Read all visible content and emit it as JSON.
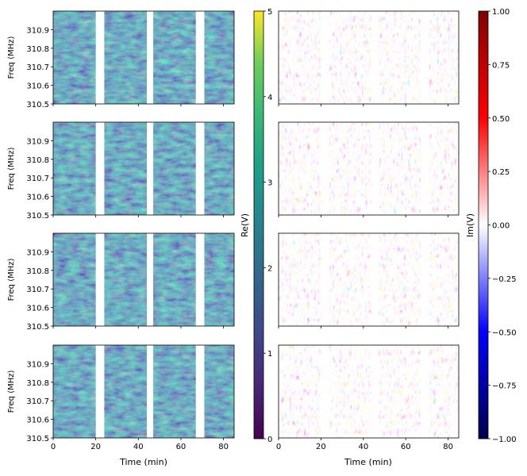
{
  "chart_data": {
    "type": "heatmap",
    "layout": "4 rows x 2 columns of dynamic-spectrum panels sharing time axis",
    "x": {
      "label": "Time (min)",
      "ticks": [
        0,
        20,
        40,
        60,
        80
      ],
      "range": [
        0,
        85
      ]
    },
    "y": {
      "label": "Freq (MHz)",
      "ticks": [
        "310.5",
        "310.6",
        "310.7",
        "310.8",
        "310.9"
      ],
      "range": [
        310.5,
        311.0
      ]
    },
    "data_gaps_min": [
      [
        20,
        24
      ],
      [
        44,
        47
      ],
      [
        67,
        71
      ]
    ],
    "left_colorbar": {
      "label": "Re(V)",
      "colormap": "viridis",
      "range": [
        0,
        5
      ],
      "ticks": [
        "0",
        "1",
        "2",
        "3",
        "4",
        "5"
      ]
    },
    "right_colorbar": {
      "label": "Im(V)",
      "colormap": "seismic",
      "range": [
        -1.0,
        1.0
      ],
      "ticks": [
        "1.00",
        "0.75",
        "0.50",
        "0.25",
        "0.00",
        "−0.25",
        "−0.50",
        "−0.75",
        "−1.00"
      ]
    },
    "axis_colors": {
      "frame": "#000000"
    }
  }
}
